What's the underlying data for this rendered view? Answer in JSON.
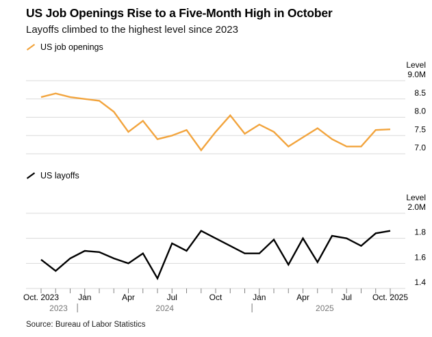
{
  "header": {
    "title": "US Job Openings Rise to a Five-Month High in October",
    "subtitle": "Layoffs climbed to the highest level since 2023"
  },
  "source": "Source: Bureau of Labor Statistics",
  "colors": {
    "openings_line": "#F2A43D",
    "layoffs_line": "#000000",
    "gridline": "#D9D9D9",
    "tick": "#808080",
    "year_label": "#757575",
    "text": "#000000"
  },
  "x_categories": [
    "Oct 2023",
    "Nov 2023",
    "Dec 2023",
    "Jan 2024",
    "Feb 2024",
    "Mar 2024",
    "Apr 2024",
    "May 2024",
    "Jun 2024",
    "Jul 2024",
    "Aug 2024",
    "Sep 2024",
    "Oct 2024",
    "Nov 2024",
    "Dec 2024",
    "Jan 2025",
    "Feb 2025",
    "Mar 2025",
    "Apr 2025",
    "May 2025",
    "Jun 2025",
    "Jul 2025",
    "Aug 2025",
    "Sep 2025",
    "Oct 2025"
  ],
  "x_axis": {
    "tick_labels": [
      {
        "index": 0,
        "label": "Oct. 2023"
      },
      {
        "index": 3,
        "label": "Jan"
      },
      {
        "index": 6,
        "label": "Apr"
      },
      {
        "index": 9,
        "label": "Jul"
      },
      {
        "index": 12,
        "label": "Oct"
      },
      {
        "index": 15,
        "label": "Jan"
      },
      {
        "index": 18,
        "label": "Apr"
      },
      {
        "index": 21,
        "label": "Jul"
      },
      {
        "index": 24,
        "label": "Oct. 2025"
      }
    ],
    "year_labels": [
      {
        "label": "2023",
        "center_index": 1.2
      },
      {
        "label": "2024",
        "center_index": 8.5
      },
      {
        "label": "2025",
        "center_index": 19.5
      }
    ],
    "year_separator_indices": [
      2.5,
      14.5
    ],
    "major_tick_indices": [
      3,
      15,
      24
    ]
  },
  "chart_data": [
    {
      "type": "line",
      "legend": "US job openings",
      "unit_header": "Level",
      "color": "#F2A43D",
      "ylim": [
        7.0,
        9.0
      ],
      "yticks": [
        {
          "value": 9.0,
          "label": "9.0M"
        },
        {
          "value": 8.5,
          "label": "8.5"
        },
        {
          "value": 8.0,
          "label": "8.0"
        },
        {
          "value": 7.5,
          "label": "7.5"
        },
        {
          "value": 7.0,
          "label": "7.0"
        }
      ],
      "x": [
        "Oct 2023",
        "Nov 2023",
        "Dec 2023",
        "Jan 2024",
        "Feb 2024",
        "Mar 2024",
        "Apr 2024",
        "May 2024",
        "Jun 2024",
        "Jul 2024",
        "Aug 2024",
        "Sep 2024",
        "Oct 2024",
        "Nov 2024",
        "Dec 2024",
        "Jan 2025",
        "Feb 2025",
        "Mar 2025",
        "Apr 2025",
        "May 2025",
        "Jun 2025",
        "Jul 2025",
        "Aug 2025",
        "Sep 2025",
        "Oct 2025"
      ],
      "values": [
        8.55,
        8.65,
        8.55,
        8.5,
        8.45,
        8.15,
        7.6,
        7.9,
        7.4,
        7.5,
        7.65,
        7.1,
        7.6,
        8.05,
        7.55,
        7.8,
        7.6,
        7.2,
        7.45,
        7.7,
        7.4,
        7.2,
        7.2,
        7.65,
        7.67
      ]
    },
    {
      "type": "line",
      "legend": "US layoffs",
      "unit_header": "Level",
      "color": "#000000",
      "ylim": [
        1.4,
        2.0
      ],
      "yticks": [
        {
          "value": 2.0,
          "label": "2.0M"
        },
        {
          "value": 1.8,
          "label": "1.8"
        },
        {
          "value": 1.6,
          "label": "1.6"
        },
        {
          "value": 1.4,
          "label": "1.4"
        }
      ],
      "x": [
        "Oct 2023",
        "Nov 2023",
        "Dec 2023",
        "Jan 2024",
        "Feb 2024",
        "Mar 2024",
        "Apr 2024",
        "May 2024",
        "Jun 2024",
        "Jul 2024",
        "Aug 2024",
        "Sep 2024",
        "Oct 2024",
        "Nov 2024",
        "Dec 2024",
        "Jan 2025",
        "Feb 2025",
        "Mar 2025",
        "Apr 2025",
        "May 2025",
        "Jun 2025",
        "Jul 2025",
        "Aug 2025",
        "Sep 2025",
        "Oct 2025"
      ],
      "values": [
        1.63,
        1.54,
        1.64,
        1.7,
        1.69,
        1.64,
        1.6,
        1.68,
        1.48,
        1.76,
        1.7,
        1.86,
        1.8,
        1.74,
        1.68,
        1.68,
        1.79,
        1.59,
        1.8,
        1.61,
        1.82,
        1.8,
        1.74,
        1.84,
        1.86
      ]
    }
  ]
}
